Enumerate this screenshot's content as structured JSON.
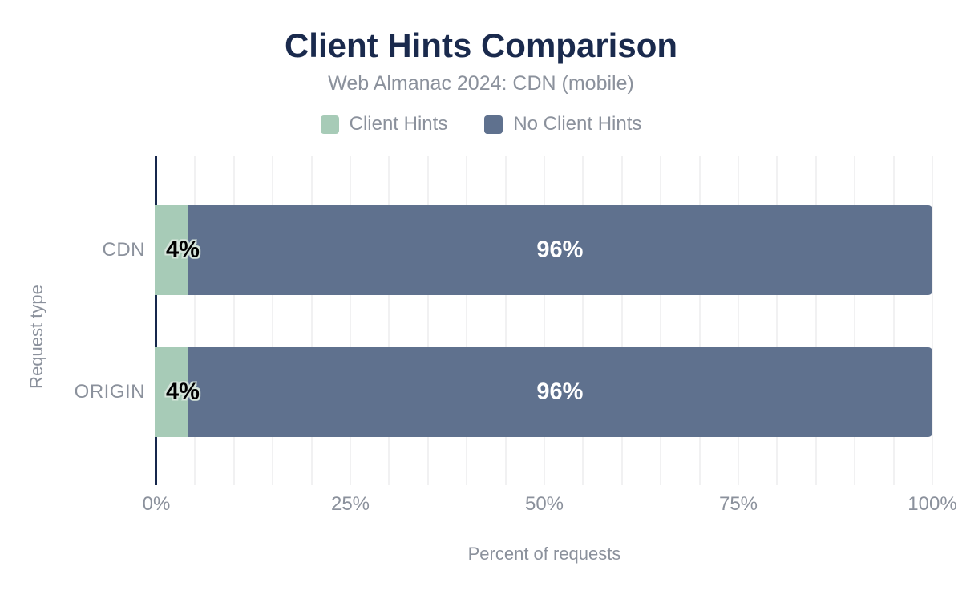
{
  "header": {
    "title": "Client Hints Comparison",
    "subtitle": "Web Almanac 2024: CDN (mobile)"
  },
  "colors": {
    "title": "#1a2a4d",
    "axis_line": "#16274c",
    "muted_text": "#8b919c",
    "gridline": "#f1f1f2",
    "series_client_hints": "#a7cbb7",
    "series_no_client_hints": "#5f718e",
    "bar_label_halo": "#d5e4da"
  },
  "chart_data": {
    "type": "bar",
    "orientation": "horizontal",
    "stacked": true,
    "title": "Client Hints Comparison",
    "subtitle": "Web Almanac 2024: CDN (mobile)",
    "categories": [
      "CDN",
      "ORIGIN"
    ],
    "series": [
      {
        "name": "Client Hints",
        "color": "#a7cbb7",
        "values": [
          4,
          4
        ],
        "labels": [
          "4%",
          "4%"
        ],
        "label_color": "#000000"
      },
      {
        "name": "No Client Hints",
        "color": "#5f718e",
        "values": [
          96,
          96
        ],
        "labels": [
          "96%",
          "96%"
        ],
        "label_color": "#ffffff"
      }
    ],
    "xlabel": "Percent of requests",
    "ylabel": "Request type",
    "xlim": [
      0,
      100
    ],
    "xticks": [
      {
        "value": 0,
        "label": "0%"
      },
      {
        "value": 25,
        "label": "25%"
      },
      {
        "value": 50,
        "label": "50%"
      },
      {
        "value": 75,
        "label": "75%"
      },
      {
        "value": 100,
        "label": "100%"
      }
    ],
    "grid": {
      "show": true,
      "interval": 5,
      "axis": "x"
    },
    "legend_position": "top"
  }
}
